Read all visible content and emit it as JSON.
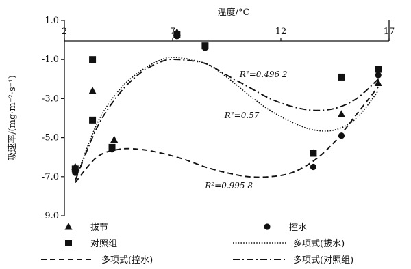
{
  "chart_data": {
    "type": "scatter",
    "xlabel": "温度/°C",
    "ylabel": "吸速率/(mg·m⁻²·s⁻¹)",
    "xlim": [
      2,
      17
    ],
    "ylim": [
      -9.0,
      1.0
    ],
    "x_ticks": [
      "2",
      "7",
      "12",
      "17"
    ],
    "y_ticks": [
      "1.0",
      "-1.0",
      "-3.0",
      "-5.0",
      "-7.0",
      "-9.0"
    ],
    "x_axis_position": "top",
    "series": [
      {
        "name": "拔节",
        "marker": "triangle",
        "points": [
          [
            2.5,
            -6.5
          ],
          [
            3.3,
            -2.6
          ],
          [
            4.3,
            -5.1
          ],
          [
            7.2,
            0.4
          ],
          [
            13.5,
            -5.8
          ],
          [
            14.8,
            -3.8
          ],
          [
            16.5,
            -2.2
          ]
        ]
      },
      {
        "name": "控水",
        "marker": "circle",
        "points": [
          [
            2.5,
            -6.8
          ],
          [
            4.2,
            -5.6
          ],
          [
            7.2,
            0.2
          ],
          [
            8.5,
            -0.4
          ],
          [
            13.5,
            -6.5
          ],
          [
            14.8,
            -4.9
          ],
          [
            16.5,
            -1.8
          ]
        ]
      },
      {
        "name": "对照组",
        "marker": "square",
        "points": [
          [
            2.5,
            -6.6
          ],
          [
            3.3,
            -1.0
          ],
          [
            3.3,
            -4.1
          ],
          [
            4.2,
            -5.5
          ],
          [
            7.2,
            0.3
          ],
          [
            8.5,
            -0.3
          ],
          [
            13.5,
            -5.8
          ],
          [
            14.8,
            -1.9
          ],
          [
            16.5,
            -1.5
          ]
        ]
      }
    ],
    "fits": [
      {
        "name": "多项式(控水)",
        "style": "dotted",
        "points": [
          [
            2.5,
            -7.2
          ],
          [
            3.5,
            -4.3
          ],
          [
            4.5,
            -2.6
          ],
          [
            5.5,
            -1.6
          ],
          [
            6.5,
            -1.0
          ],
          [
            7.2,
            -0.9
          ],
          [
            8.5,
            -1.2
          ],
          [
            9.5,
            -1.9
          ],
          [
            10.5,
            -2.8
          ],
          [
            11.5,
            -3.6
          ],
          [
            12.5,
            -4.2
          ],
          [
            13.5,
            -4.6
          ],
          [
            14.5,
            -4.6
          ],
          [
            15.5,
            -4.0
          ],
          [
            16.5,
            -2.6
          ]
        ]
      },
      {
        "name": "多项式(对照组)",
        "style": "dashdot",
        "points": [
          [
            2.5,
            -7.2
          ],
          [
            3.5,
            -4.5
          ],
          [
            4.5,
            -2.8
          ],
          [
            5.5,
            -1.7
          ],
          [
            6.5,
            -1.1
          ],
          [
            7.2,
            -1.0
          ],
          [
            8.5,
            -1.2
          ],
          [
            9.5,
            -1.8
          ],
          [
            10.5,
            -2.4
          ],
          [
            11.5,
            -3.0
          ],
          [
            12.5,
            -3.4
          ],
          [
            13.5,
            -3.6
          ],
          [
            14.5,
            -3.5
          ],
          [
            15.5,
            -3.0
          ],
          [
            16.5,
            -2.0
          ]
        ]
      },
      {
        "name": "多项式(控水)",
        "style": "dashed",
        "points": [
          [
            2.5,
            -7.3
          ],
          [
            3.5,
            -6.0
          ],
          [
            4.5,
            -5.6
          ],
          [
            5.5,
            -5.6
          ],
          [
            6.5,
            -5.8
          ],
          [
            7.5,
            -6.1
          ],
          [
            8.5,
            -6.5
          ],
          [
            9.5,
            -6.8
          ],
          [
            10.5,
            -7.0
          ],
          [
            11.5,
            -7.0
          ],
          [
            12.5,
            -6.8
          ],
          [
            13.5,
            -6.2
          ],
          [
            14.5,
            -5.2
          ],
          [
            15.5,
            -3.8
          ],
          [
            16.5,
            -2.4
          ]
        ]
      }
    ],
    "annotations": [
      {
        "text": "R²=0.496 2",
        "x": 11.2,
        "y": -1.9
      },
      {
        "text": "R²=0.57",
        "x": 10.2,
        "y": -4.0
      },
      {
        "text": "R²=0.995 8",
        "x": 9.6,
        "y": -7.6
      }
    ],
    "legend": {
      "position": "bottom",
      "entries": [
        {
          "label": "拔节",
          "marker": "triangle"
        },
        {
          "label": "控水",
          "marker": "circle"
        },
        {
          "label": "对照组",
          "marker": "square"
        },
        {
          "label": "多项式(拔水)",
          "line": "dotted"
        },
        {
          "label": "多项式(控水)",
          "line": "dashed"
        },
        {
          "label": "多项式(对照组)",
          "line": "dashdot"
        }
      ]
    }
  }
}
